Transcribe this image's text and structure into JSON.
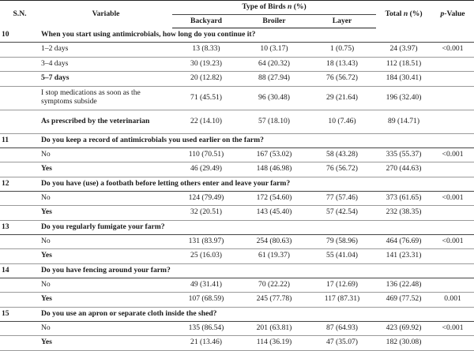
{
  "headers": {
    "sn": "S.N.",
    "variable": "Variable",
    "type_group": "Type of Birds n (%)",
    "backyard": "Backyard",
    "broiler": "Broiler",
    "layer": "Layer",
    "total": "Total n (%)",
    "pvalue": "p-Value"
  },
  "sections": [
    {
      "sn": "10",
      "question": "When you start using antimicrobials, how long do you continue it?",
      "rows": [
        {
          "label": "1–2 days",
          "backyard": "13 (8.33)",
          "broiler": "10 (3.17)",
          "layer": "1 (0.75)",
          "total": "24 (3.97)",
          "p": "<0.001",
          "bold": false,
          "tall": false
        },
        {
          "label": "3–4 days",
          "backyard": "30 (19.23)",
          "broiler": "64 (20.32)",
          "layer": "18 (13.43)",
          "total": "112 (18.51)",
          "p": "",
          "bold": false,
          "tall": false
        },
        {
          "label": "5–7 days",
          "backyard": "20 (12.82)",
          "broiler": "88 (27.94)",
          "layer": "76 (56.72)",
          "total": "184 (30.41)",
          "p": "",
          "bold": true,
          "tall": false
        },
        {
          "label": "I stop medications as soon as the symptoms subside",
          "backyard": "71 (45.51)",
          "broiler": "96 (30.48)",
          "layer": "29 (21.64)",
          "total": "196 (32.40)",
          "p": "",
          "bold": false,
          "tall": true
        },
        {
          "label": "As prescribed by the veterinarian",
          "backyard": "22 (14.10)",
          "broiler": "57 (18.10)",
          "layer": "10 (7.46)",
          "total": "89 (14.71)",
          "p": "",
          "bold": true,
          "tall": true
        }
      ]
    },
    {
      "sn": "11",
      "question": "Do you keep a record of antimicrobials you used earlier on the farm?",
      "rows": [
        {
          "label": "No",
          "backyard": "110 (70.51)",
          "broiler": "167 (53.02)",
          "layer": "58 (43.28)",
          "total": "335 (55.37)",
          "p": "<0.001",
          "bold": false,
          "tall": false
        },
        {
          "label": "Yes",
          "backyard": "46 (29.49)",
          "broiler": "148 (46.98)",
          "layer": "76 (56.72)",
          "total": "270 (44.63)",
          "p": "",
          "bold": true,
          "tall": false
        }
      ]
    },
    {
      "sn": "12",
      "question": "Do you have (use) a footbath before letting others enter and leave your farm?",
      "rows": [
        {
          "label": "No",
          "backyard": "124 (79.49)",
          "broiler": "172 (54.60)",
          "layer": "77 (57.46)",
          "total": "373 (61.65)",
          "p": "<0.001",
          "bold": false,
          "tall": false
        },
        {
          "label": "Yes",
          "backyard": "32 (20.51)",
          "broiler": "143 (45.40)",
          "layer": "57 (42.54)",
          "total": "232 (38.35)",
          "p": "",
          "bold": true,
          "tall": false
        }
      ]
    },
    {
      "sn": "13",
      "question": "Do you regularly fumigate your farm?",
      "rows": [
        {
          "label": "No",
          "backyard": "131 (83.97)",
          "broiler": "254 (80.63)",
          "layer": "79 (58.96)",
          "total": "464 (76.69)",
          "p": "<0.001",
          "bold": false,
          "tall": false
        },
        {
          "label": "Yes",
          "backyard": "25 (16.03)",
          "broiler": "61 (19.37)",
          "layer": "55 (41.04)",
          "total": "141 (23.31)",
          "p": "",
          "bold": true,
          "tall": false
        }
      ]
    },
    {
      "sn": "14",
      "question": "Do you have fencing around your farm?",
      "rows": [
        {
          "label": "No",
          "backyard": "49 (31.41)",
          "broiler": "70 (22.22)",
          "layer": "17 (12.69)",
          "total": "136 (22.48)",
          "p": "",
          "bold": false,
          "tall": false
        },
        {
          "label": "Yes",
          "backyard": "107 (68.59)",
          "broiler": "245 (77.78)",
          "layer": "117 (87.31)",
          "total": "469 (77.52)",
          "p": "0.001",
          "bold": true,
          "tall": false
        }
      ]
    },
    {
      "sn": "15",
      "question": "Do you use an apron or separate cloth inside the shed?",
      "rows": [
        {
          "label": "No",
          "backyard": "135 (86.54)",
          "broiler": "201 (63.81)",
          "layer": "87 (64.93)",
          "total": "423 (69.92)",
          "p": "<0.001",
          "bold": false,
          "tall": false
        },
        {
          "label": "Yes",
          "backyard": "21 (13.46)",
          "broiler": "114 (36.19)",
          "layer": "47 (35.07)",
          "total": "182 (30.08)",
          "p": "",
          "bold": true,
          "tall": false
        }
      ]
    }
  ]
}
